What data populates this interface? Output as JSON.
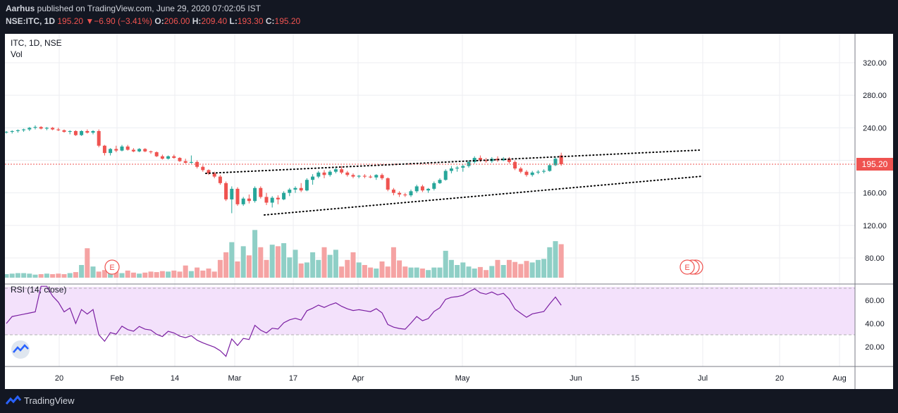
{
  "header": {
    "author": "Aarhus",
    "published_text": " published on TradingView.com, June 29, 2020 07:02:05 IST",
    "symbol": "NSE:ITC, 1D",
    "last": "195.20",
    "change_arrow": "▼",
    "change": "−6.90 (−3.41%)",
    "open_label": "O:",
    "open": "206.00",
    "high_label": "H:",
    "high": "209.40",
    "low_label": "L:",
    "low": "193.30",
    "close_label": "C:",
    "close": "195.20"
  },
  "legend": {
    "main": "ITC, 1D, NSE",
    "vol": "Vol",
    "rsi": "RSI (14, close)"
  },
  "price_tag": "195.20",
  "earnings_marker": "E",
  "footer": {
    "brand": "TradingView"
  },
  "colors": {
    "up": "#26a69a",
    "down": "#ef5350",
    "up_vol": "#8fcfc6",
    "down_vol": "#f5a3a3",
    "rsi_line": "#7b1fa2",
    "rsi_band": "#f3e1fb",
    "last_price_line": "#ef5350"
  },
  "chart_data": {
    "type": "candlestick",
    "price_axis": {
      "ticks": [
        80,
        120,
        160,
        200,
        240,
        280,
        320
      ],
      "tick_labels": [
        "80.00",
        "120.00",
        "160.00",
        "",
        "240.00",
        "280.00",
        "320.00"
      ]
    },
    "rsi_axis": {
      "ticks": [
        20,
        40,
        60
      ],
      "tick_labels": [
        "20.00",
        "40.00",
        "60.00"
      ],
      "band": [
        30,
        70
      ]
    },
    "time_axis": [
      "20",
      "Feb",
      "14",
      "Mar",
      "17",
      "Apr",
      "May",
      "Jun",
      "15",
      "Jul",
      "20",
      "Aug"
    ],
    "last_price": 195.2,
    "candles": [
      [
        235,
        236,
        233,
        235
      ],
      [
        235,
        237,
        233,
        236
      ],
      [
        236,
        238,
        234,
        237
      ],
      [
        237,
        239,
        235,
        238
      ],
      [
        238,
        241,
        236,
        240
      ],
      [
        240,
        243,
        238,
        241
      ],
      [
        241,
        242,
        238,
        239
      ],
      [
        239,
        241,
        237,
        240
      ],
      [
        240,
        241,
        237,
        238
      ],
      [
        238,
        240,
        236,
        237
      ],
      [
        237,
        238,
        234,
        235
      ],
      [
        235,
        237,
        232,
        236
      ],
      [
        236,
        237,
        230,
        231
      ],
      [
        231,
        237,
        230,
        236
      ],
      [
        236,
        238,
        233,
        234
      ],
      [
        234,
        237,
        232,
        236
      ],
      [
        236,
        238,
        216,
        218
      ],
      [
        218,
        219,
        206,
        209
      ],
      [
        209,
        215,
        206,
        214
      ],
      [
        214,
        218,
        210,
        212
      ],
      [
        212,
        219,
        211,
        217
      ],
      [
        217,
        219,
        212,
        213
      ],
      [
        213,
        215,
        210,
        211
      ],
      [
        211,
        215,
        210,
        214
      ],
      [
        214,
        215,
        210,
        211
      ],
      [
        211,
        212,
        208,
        210
      ],
      [
        210,
        211,
        204,
        205
      ],
      [
        205,
        207,
        201,
        202
      ],
      [
        202,
        206,
        201,
        205
      ],
      [
        205,
        207,
        202,
        203
      ],
      [
        203,
        204,
        198,
        199
      ],
      [
        199,
        202,
        196,
        197
      ],
      [
        197,
        206,
        196,
        198
      ],
      [
        198,
        200,
        190,
        192
      ],
      [
        192,
        194,
        186,
        188
      ],
      [
        188,
        189,
        182,
        184
      ],
      [
        184,
        186,
        178,
        180
      ],
      [
        180,
        182,
        170,
        172
      ],
      [
        172,
        174,
        150,
        152
      ],
      [
        152,
        168,
        135,
        165
      ],
      [
        165,
        167,
        144,
        146
      ],
      [
        146,
        155,
        144,
        153
      ],
      [
        153,
        158,
        147,
        150
      ],
      [
        150,
        168,
        148,
        166
      ],
      [
        166,
        168,
        153,
        155
      ],
      [
        155,
        160,
        145,
        148
      ],
      [
        148,
        156,
        142,
        154
      ],
      [
        154,
        157,
        146,
        152
      ],
      [
        152,
        162,
        151,
        160
      ],
      [
        160,
        166,
        156,
        164
      ],
      [
        164,
        168,
        160,
        166
      ],
      [
        166,
        172,
        161,
        163
      ],
      [
        163,
        178,
        162,
        176
      ],
      [
        176,
        183,
        170,
        180
      ],
      [
        180,
        187,
        178,
        185
      ],
      [
        185,
        188,
        178,
        182
      ],
      [
        182,
        188,
        180,
        186
      ],
      [
        186,
        191,
        184,
        189
      ],
      [
        189,
        193,
        183,
        185
      ],
      [
        185,
        187,
        180,
        182
      ],
      [
        182,
        184,
        178,
        180
      ],
      [
        180,
        182,
        178,
        181
      ],
      [
        181,
        183,
        178,
        180
      ],
      [
        180,
        182,
        178,
        179
      ],
      [
        179,
        183,
        176,
        182
      ],
      [
        182,
        184,
        176,
        178
      ],
      [
        178,
        179,
        162,
        164
      ],
      [
        164,
        166,
        157,
        160
      ],
      [
        160,
        162,
        155,
        158
      ],
      [
        158,
        160,
        155,
        157
      ],
      [
        157,
        164,
        155,
        162
      ],
      [
        162,
        170,
        160,
        168
      ],
      [
        168,
        170,
        161,
        163
      ],
      [
        163,
        166,
        160,
        165
      ],
      [
        165,
        174,
        163,
        172
      ],
      [
        172,
        178,
        171,
        176
      ],
      [
        176,
        189,
        175,
        187
      ],
      [
        187,
        193,
        184,
        190
      ],
      [
        190,
        193,
        186,
        191
      ],
      [
        191,
        195,
        186,
        193
      ],
      [
        193,
        200,
        191,
        198
      ],
      [
        198,
        205,
        196,
        203
      ],
      [
        203,
        206,
        198,
        200
      ],
      [
        200,
        203,
        197,
        199
      ],
      [
        199,
        204,
        197,
        202
      ],
      [
        202,
        205,
        198,
        200
      ],
      [
        200,
        204,
        199,
        202
      ],
      [
        202,
        204,
        196,
        198
      ],
      [
        198,
        200,
        188,
        190
      ],
      [
        190,
        192,
        184,
        186
      ],
      [
        186,
        188,
        180,
        182
      ],
      [
        182,
        187,
        180,
        185
      ],
      [
        185,
        188,
        183,
        186
      ],
      [
        186,
        189,
        184,
        187
      ],
      [
        187,
        196,
        186,
        194
      ],
      [
        194,
        204,
        193,
        202
      ],
      [
        206,
        209.4,
        193.3,
        195.2
      ]
    ],
    "volume": [
      7,
      8,
      9,
      9,
      8,
      6,
      7,
      8,
      7,
      8,
      7,
      9,
      11,
      25,
      58,
      22,
      12,
      15,
      11,
      12,
      9,
      14,
      10,
      8,
      10,
      12,
      11,
      13,
      12,
      14,
      12,
      24,
      13,
      20,
      14,
      18,
      12,
      35,
      50,
      70,
      32,
      62,
      44,
      94,
      60,
      35,
      65,
      62,
      68,
      40,
      55,
      28,
      30,
      50,
      35,
      60,
      45,
      55,
      22,
      35,
      50,
      30,
      25,
      20,
      18,
      32,
      22,
      60,
      34,
      22,
      20,
      20,
      18,
      15,
      20,
      20,
      53,
      35,
      25,
      30,
      22,
      18,
      21,
      15,
      23,
      35,
      25,
      35,
      31,
      27,
      33,
      30,
      35,
      37,
      60,
      72,
      66
    ]
  }
}
